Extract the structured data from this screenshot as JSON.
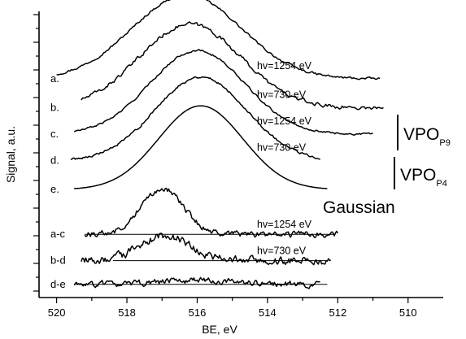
{
  "chart_data": {
    "type": "line",
    "xlabel": "BE, eV",
    "ylabel": "Signal, a.u.",
    "xlim": [
      520.5,
      509
    ],
    "x_reversed": true,
    "x_ticks": [
      520,
      518,
      516,
      514,
      512,
      510
    ],
    "y_ticks_labeled": false,
    "curves": [
      {
        "label": "a.",
        "start": 520.0,
        "end": 510.8,
        "center": 516.3,
        "amplitude": 1.0,
        "width": 1.55,
        "noise": 0.012,
        "energy": "hv=1254 eV",
        "energy_at": 512.0,
        "offset": 8.3
      },
      {
        "label": "b.",
        "start": 519.3,
        "end": 510.7,
        "center": 516.2,
        "amplitude": 1.0,
        "width": 1.45,
        "noise": 0.02,
        "energy": "hv=730 eV",
        "energy_at": 512.0,
        "offset": 7.2
      },
      {
        "label": "c.",
        "start": 519.5,
        "end": 511.0,
        "center": 516.0,
        "amplitude": 1.0,
        "width": 1.35,
        "noise": 0.01,
        "energy": "hv=1254 eV",
        "energy_at": 512.0,
        "offset": 6.2
      },
      {
        "label": "d.",
        "start": 519.6,
        "end": 512.5,
        "center": 515.9,
        "amplitude": 1.0,
        "width": 1.3,
        "noise": 0.012,
        "energy": "hv=730 eV",
        "energy_at": 512.0,
        "offset": 5.2
      },
      {
        "label": "e.",
        "start": 519.5,
        "end": 512.3,
        "center": 515.9,
        "amplitude": 1.0,
        "width": 1.2,
        "noise": 0.0,
        "energy": "",
        "energy_at": 512.0,
        "offset": 4.1
      },
      {
        "label": "a-c",
        "start": 519.2,
        "end": 512.0,
        "center": 517.0,
        "amplitude": 0.55,
        "width": 0.6,
        "noise": 0.03,
        "energy": "hv=1254 eV",
        "energy_at": 512.0,
        "offset": 2.4,
        "baseline_from": 519.2,
        "baseline_to": 512.1
      },
      {
        "label": "b-d",
        "start": 519.3,
        "end": 512.2,
        "center": 516.9,
        "amplitude": 0.3,
        "width": 0.7,
        "noise": 0.04,
        "energy": "hv=730 eV",
        "energy_at": 512.0,
        "offset": 1.4,
        "baseline_from": 518.4,
        "baseline_to": 512.3
      },
      {
        "label": "d-e",
        "start": 519.5,
        "end": 512.5,
        "center": 516.0,
        "amplitude": 0.05,
        "width": 1.0,
        "noise": 0.03,
        "energy": "",
        "energy_at": 512.0,
        "offset": 0.5,
        "baseline_from": 519.5,
        "baseline_to": 512.3
      }
    ],
    "groups": [
      {
        "name": "VPO",
        "subscript": "P9"
      },
      {
        "name": "VPO",
        "subscript": "P4"
      }
    ],
    "gaussian_label": "Gaussian"
  }
}
